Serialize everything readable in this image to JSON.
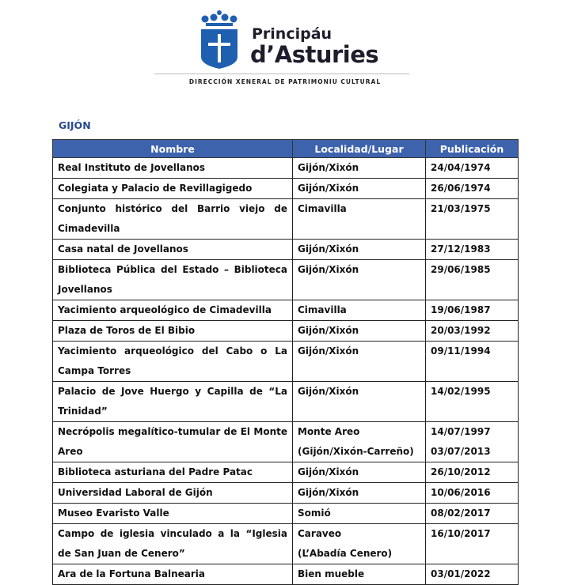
{
  "header": {
    "brand_line1": "Principáu",
    "brand_line2": "d’Asturies",
    "subtitle": "DIRECCIÓN XENERAL DE PATRIMONIU CULTURAL",
    "logo": "asturias-crest-icon",
    "accent": "#1f5fb0"
  },
  "section_title": "GIJÓN",
  "table": {
    "header_color": "#3e63ad",
    "columns": [
      "Nombre",
      "Localidad/Lugar",
      "Publicación"
    ],
    "rows": [
      {
        "nombre": "Real Instituto de Jovellanos",
        "lugar": "Gijón/Xixón",
        "fecha": "24/04/1974"
      },
      {
        "nombre": "Colegiata y Palacio de Revillagigedo",
        "lugar": "Gijón/Xixón",
        "fecha": "26/06/1974"
      },
      {
        "nombre": "Conjunto histórico del Barrio viejo de Cimadevilla",
        "lugar": "Cimavilla",
        "fecha": "21/03/1975"
      },
      {
        "nombre": "Casa natal de Jovellanos",
        "lugar": "Gijón/Xixón",
        "fecha": "27/12/1983"
      },
      {
        "nombre": "Biblioteca Pública del Estado – Biblioteca Jovellanos",
        "lugar": "Gijón/Xixón",
        "fecha": "29/06/1985"
      },
      {
        "nombre": "Yacimiento arqueológico de Cimadevilla",
        "lugar": "Cimavilla",
        "fecha": "19/06/1987"
      },
      {
        "nombre": "Plaza de Toros de El Bibio",
        "lugar": "Gijón/Xixón",
        "fecha": "20/03/1992"
      },
      {
        "nombre": "Yacimiento arqueológico del Cabo o La Campa Torres",
        "lugar": "Gijón/Xixón",
        "fecha": "09/11/1994"
      },
      {
        "nombre": "Palacio de Jove Huergo y Capilla de “La Trinidad”",
        "lugar": "Gijón/Xixón",
        "fecha": "14/02/1995"
      },
      {
        "nombre": "Necrópolis megalítico-tumular de El Monte Areo",
        "lugar": "Monte Areo (Gijón/Xixón-Carreño)",
        "fecha": "14/07/1997 03/07/2013"
      },
      {
        "nombre": "Biblioteca asturiana del Padre Patac",
        "lugar": "Gijón/Xixón",
        "fecha": "26/10/2012"
      },
      {
        "nombre": "Universidad Laboral de Gijón",
        "lugar": "Gijón/Xixón",
        "fecha": "10/06/2016"
      },
      {
        "nombre": "Museo Evaristo Valle",
        "lugar": "Somió",
        "fecha": "08/02/2017"
      },
      {
        "nombre": "Campo de iglesia vinculado a la “Iglesia de San Juan de Cenero”",
        "lugar": "Caraveo (L’Abadía Cenero)",
        "fecha": "16/10/2017"
      },
      {
        "nombre": "Ara de la Fortuna Balnearia",
        "lugar": "Bien mueble",
        "fecha": "03/01/2022"
      }
    ]
  }
}
